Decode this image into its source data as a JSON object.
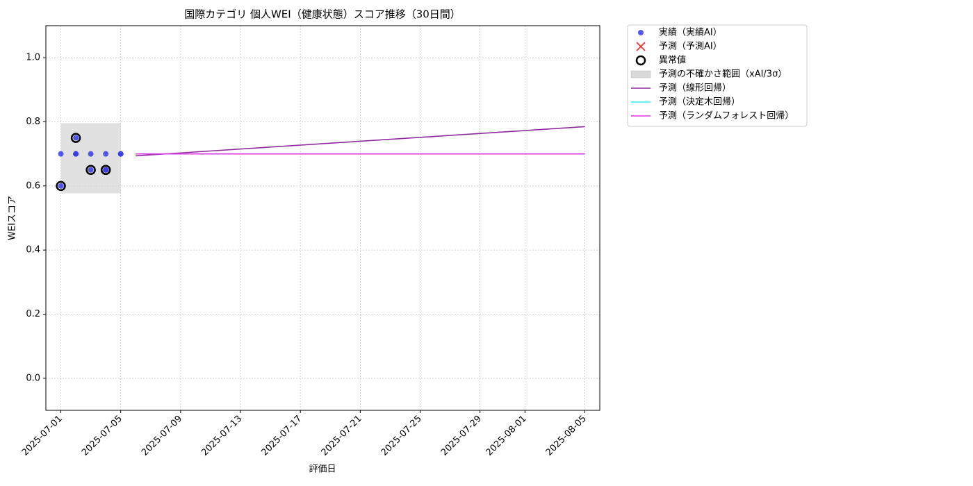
{
  "chart_data": {
    "type": "line",
    "title": "国際カテゴリ 個人WEI（健康状態）スコア推移（30日間）",
    "xlabel": "評価日",
    "ylabel": "WEIスコア",
    "xlim": [
      "2025-06-30",
      "2025-08-06"
    ],
    "xticks": [
      "2025-07-01",
      "2025-07-05",
      "2025-07-09",
      "2025-07-13",
      "2025-07-17",
      "2025-07-21",
      "2025-07-25",
      "2025-07-29",
      "2025-08-01",
      "2025-08-05"
    ],
    "ylim": [
      -0.1,
      1.1
    ],
    "yticks": [
      {
        "value": 0,
        "label": "0.0"
      },
      0.2,
      0.4,
      0.6,
      0.8,
      {
        "value": 1,
        "label": "1.0"
      }
    ],
    "grid": true,
    "legend": "outside-right",
    "series": [
      {
        "name": "実績（実績AI）",
        "type": "scatter",
        "marker": "dot",
        "color": "#3a3ae8",
        "x": [
          "2025-07-01",
          "2025-07-01",
          "2025-07-02",
          "2025-07-02",
          "2025-07-02",
          "2025-07-03",
          "2025-07-03",
          "2025-07-04",
          "2025-07-04",
          "2025-07-04",
          "2025-07-05",
          "2025-07-05"
        ],
        "values": [
          0.7,
          0.6,
          0.7,
          0.7,
          0.75,
          0.65,
          0.7,
          0.65,
          0.7,
          0.65,
          0.7,
          0.7
        ]
      },
      {
        "name": "予測（予測AI）",
        "type": "scatter",
        "marker": "cross",
        "color": "#ee3333",
        "x": [],
        "values": []
      },
      {
        "name": "異常値",
        "type": "scatter",
        "marker": "ring",
        "color": "#000000",
        "x": [
          "2025-07-01",
          "2025-07-02",
          "2025-07-03",
          "2025-07-04",
          "2025-07-04"
        ],
        "values": [
          0.6,
          0.75,
          0.65,
          0.65,
          0.65
        ]
      },
      {
        "name": "予測の不確かさ範囲（xAI/3σ）",
        "type": "band",
        "color": "#d9d9d9",
        "x": [
          "2025-07-01",
          "2025-07-05"
        ],
        "low": [
          0.577,
          0.577
        ],
        "values": [
          0.796,
          0.796
        ]
      },
      {
        "name": "予測（線形回帰）",
        "type": "line",
        "color": "#8e2c9e",
        "x": [
          "2025-07-06",
          "2025-08-05"
        ],
        "values": [
          0.694,
          0.785
        ]
      },
      {
        "name": "予測（決定木回帰）",
        "type": "line",
        "color": "#33eeee",
        "x": [
          "2025-07-06",
          "2025-08-05"
        ],
        "values": [
          0.7,
          0.7
        ]
      },
      {
        "name": "予測（ランダムフォレスト回帰）",
        "type": "line",
        "color": "#e633e6",
        "x": [
          "2025-07-06",
          "2025-08-05"
        ],
        "values": [
          0.7,
          0.7
        ]
      }
    ]
  }
}
